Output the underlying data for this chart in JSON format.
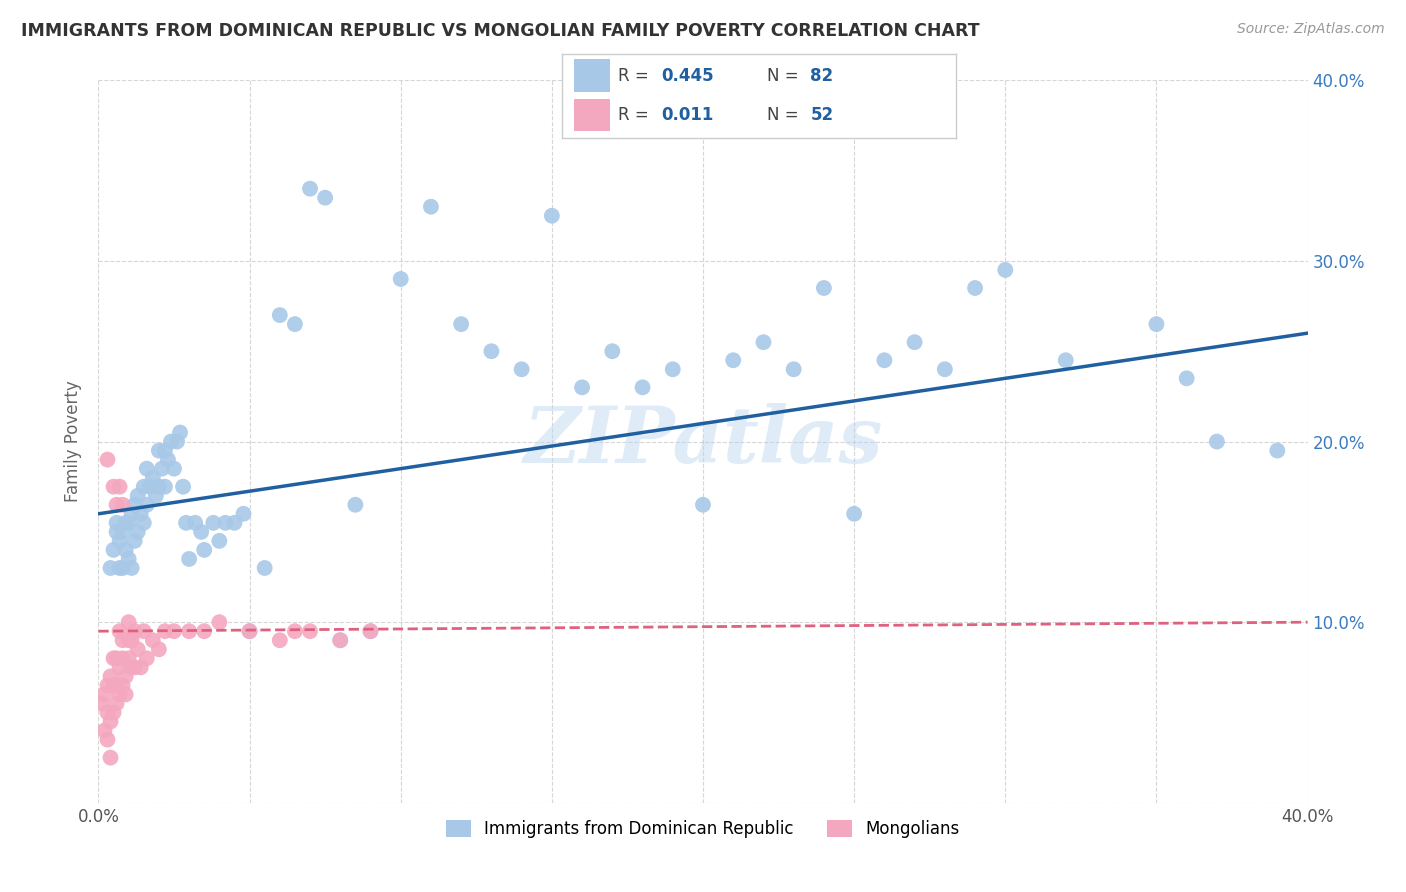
{
  "title": "IMMIGRANTS FROM DOMINICAN REPUBLIC VS MONGOLIAN FAMILY POVERTY CORRELATION CHART",
  "source": "Source: ZipAtlas.com",
  "ylabel": "Family Poverty",
  "xlim": [
    0.0,
    0.4
  ],
  "ylim": [
    0.0,
    0.4
  ],
  "blue_color": "#a8c8e8",
  "pink_color": "#f4a8c0",
  "blue_line_color": "#2060a0",
  "pink_line_color": "#e06080",
  "watermark": "ZIPatlas",
  "legend_label1": "Immigrants from Dominican Republic",
  "legend_label2": "Mongolians",
  "blue_points_x": [
    0.004,
    0.005,
    0.006,
    0.006,
    0.007,
    0.007,
    0.008,
    0.008,
    0.009,
    0.009,
    0.01,
    0.01,
    0.011,
    0.011,
    0.012,
    0.012,
    0.013,
    0.013,
    0.014,
    0.015,
    0.015,
    0.016,
    0.016,
    0.017,
    0.018,
    0.019,
    0.02,
    0.02,
    0.021,
    0.022,
    0.022,
    0.023,
    0.024,
    0.025,
    0.026,
    0.027,
    0.028,
    0.029,
    0.03,
    0.032,
    0.034,
    0.035,
    0.038,
    0.04,
    0.042,
    0.045,
    0.048,
    0.05,
    0.055,
    0.06,
    0.065,
    0.07,
    0.075,
    0.08,
    0.085,
    0.09,
    0.1,
    0.11,
    0.12,
    0.13,
    0.14,
    0.15,
    0.16,
    0.17,
    0.18,
    0.19,
    0.2,
    0.21,
    0.22,
    0.23,
    0.24,
    0.25,
    0.26,
    0.27,
    0.28,
    0.29,
    0.3,
    0.32,
    0.35,
    0.36,
    0.37,
    0.39
  ],
  "blue_points_y": [
    0.13,
    0.14,
    0.15,
    0.155,
    0.13,
    0.145,
    0.13,
    0.15,
    0.14,
    0.155,
    0.135,
    0.155,
    0.13,
    0.16,
    0.145,
    0.165,
    0.15,
    0.17,
    0.16,
    0.155,
    0.175,
    0.165,
    0.185,
    0.175,
    0.18,
    0.17,
    0.175,
    0.195,
    0.185,
    0.175,
    0.195,
    0.19,
    0.2,
    0.185,
    0.2,
    0.205,
    0.175,
    0.155,
    0.135,
    0.155,
    0.15,
    0.14,
    0.155,
    0.145,
    0.155,
    0.155,
    0.16,
    0.095,
    0.13,
    0.27,
    0.265,
    0.34,
    0.335,
    0.09,
    0.165,
    0.095,
    0.29,
    0.33,
    0.265,
    0.25,
    0.24,
    0.325,
    0.23,
    0.25,
    0.23,
    0.24,
    0.165,
    0.245,
    0.255,
    0.24,
    0.285,
    0.16,
    0.245,
    0.255,
    0.24,
    0.285,
    0.295,
    0.245,
    0.265,
    0.235,
    0.2,
    0.195
  ],
  "pink_points_x": [
    0.001,
    0.002,
    0.002,
    0.003,
    0.003,
    0.003,
    0.004,
    0.004,
    0.004,
    0.005,
    0.005,
    0.005,
    0.006,
    0.006,
    0.006,
    0.007,
    0.007,
    0.007,
    0.008,
    0.008,
    0.008,
    0.009,
    0.009,
    0.01,
    0.01,
    0.01,
    0.011,
    0.011,
    0.012,
    0.012,
    0.013,
    0.014,
    0.015,
    0.016,
    0.018,
    0.02,
    0.022,
    0.025,
    0.03,
    0.035,
    0.04,
    0.05,
    0.06,
    0.065,
    0.07,
    0.08,
    0.09,
    0.005,
    0.006,
    0.007,
    0.008,
    0.003
  ],
  "pink_points_y": [
    0.055,
    0.04,
    0.06,
    0.035,
    0.05,
    0.065,
    0.025,
    0.045,
    0.07,
    0.05,
    0.065,
    0.08,
    0.055,
    0.065,
    0.08,
    0.06,
    0.075,
    0.095,
    0.065,
    0.08,
    0.09,
    0.06,
    0.07,
    0.08,
    0.09,
    0.1,
    0.075,
    0.09,
    0.075,
    0.095,
    0.085,
    0.075,
    0.095,
    0.08,
    0.09,
    0.085,
    0.095,
    0.095,
    0.095,
    0.095,
    0.1,
    0.095,
    0.09,
    0.095,
    0.095,
    0.09,
    0.095,
    0.175,
    0.165,
    0.175,
    0.165,
    0.19
  ],
  "blue_line_y0": 0.16,
  "blue_line_y1": 0.26,
  "pink_line_y0": 0.095,
  "pink_line_y1": 0.1
}
